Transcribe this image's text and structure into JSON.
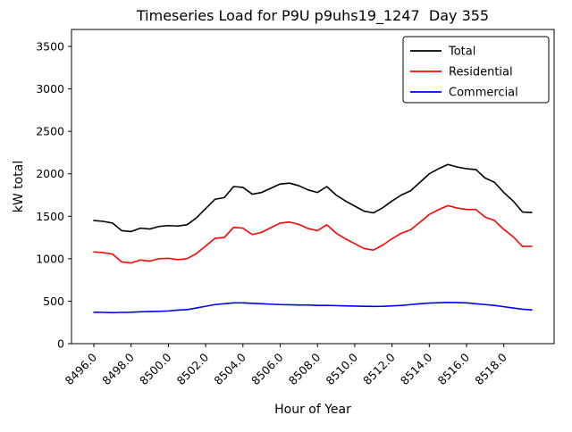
{
  "chart_data": {
    "type": "line",
    "title": "Timeseries Load for P9U p9uhs19_1247  Day 355",
    "xlabel": "Hour of Year",
    "ylabel": "kW total",
    "xlim": [
      8494.8,
      8520.7
    ],
    "ylim": [
      0,
      3700
    ],
    "grid": false,
    "legend_position": "upper right",
    "x_ticks": [
      8496,
      8498,
      8500,
      8502,
      8504,
      8506,
      8508,
      8510,
      8512,
      8514,
      8516,
      8518
    ],
    "x_tick_labels": [
      "8496.0",
      "8498.0",
      "8500.0",
      "8502.0",
      "8504.0",
      "8506.0",
      "8508.0",
      "8510.0",
      "8512.0",
      "8514.0",
      "8516.0",
      "8518.0"
    ],
    "y_ticks": [
      0,
      500,
      1000,
      1500,
      2000,
      2500,
      3000,
      3500
    ],
    "y_tick_labels": [
      "0",
      "500",
      "1000",
      "1500",
      "2000",
      "2500",
      "3000",
      "3500"
    ],
    "x": [
      8496.0,
      8496.5,
      8497.0,
      8497.5,
      8498.0,
      8498.5,
      8499.0,
      8499.5,
      8500.0,
      8500.5,
      8501.0,
      8501.5,
      8502.0,
      8502.5,
      8503.0,
      8503.5,
      8504.0,
      8504.5,
      8505.0,
      8505.5,
      8506.0,
      8506.5,
      8507.0,
      8507.5,
      8508.0,
      8508.5,
      8509.0,
      8509.5,
      8510.0,
      8510.5,
      8511.0,
      8511.5,
      8512.0,
      8512.5,
      8513.0,
      8513.5,
      8514.0,
      8514.5,
      8515.0,
      8515.5,
      8516.0,
      8516.5,
      8517.0,
      8517.5,
      8518.0,
      8518.5,
      8519.0,
      8519.5
    ],
    "series": [
      {
        "name": "Total",
        "color": "#000000",
        "values": [
          1450,
          1440,
          1420,
          1330,
          1320,
          1360,
          1350,
          1380,
          1390,
          1385,
          1400,
          1480,
          1590,
          1700,
          1720,
          1850,
          1840,
          1760,
          1780,
          1830,
          1880,
          1890,
          1860,
          1810,
          1780,
          1850,
          1750,
          1680,
          1620,
          1560,
          1540,
          1600,
          1680,
          1750,
          1800,
          1900,
          2000,
          2060,
          2110,
          2080,
          2060,
          2050,
          1950,
          1900,
          1780,
          1680,
          1550,
          1545
        ]
      },
      {
        "name": "Residential",
        "color": "#ff0000",
        "values": [
          1080,
          1072,
          1055,
          962,
          950,
          985,
          972,
          1000,
          1005,
          990,
          1000,
          1060,
          1150,
          1240,
          1250,
          1370,
          1360,
          1285,
          1310,
          1365,
          1420,
          1432,
          1405,
          1355,
          1330,
          1400,
          1302,
          1235,
          1178,
          1120,
          1102,
          1160,
          1235,
          1300,
          1340,
          1430,
          1522,
          1578,
          1625,
          1597,
          1580,
          1580,
          1490,
          1450,
          1345,
          1260,
          1145,
          1147
        ]
      },
      {
        "name": "Commercial",
        "color": "#0000ff",
        "values": [
          370,
          368,
          365,
          368,
          370,
          375,
          378,
          380,
          385,
          395,
          400,
          420,
          440,
          460,
          470,
          480,
          480,
          475,
          470,
          465,
          460,
          458,
          455,
          455,
          450,
          450,
          448,
          445,
          442,
          440,
          438,
          440,
          445,
          450,
          460,
          470,
          478,
          482,
          485,
          483,
          480,
          470,
          460,
          450,
          435,
          420,
          405,
          398
        ]
      }
    ]
  }
}
